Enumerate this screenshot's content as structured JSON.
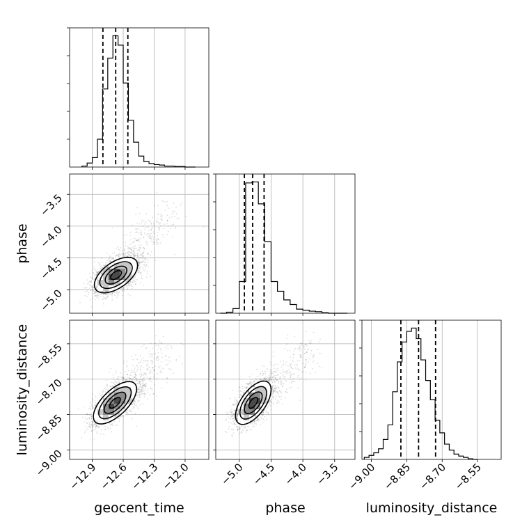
{
  "chart_data": {
    "type": "corner",
    "parameters": [
      "geocent_time",
      "phase",
      "luminosity_distance"
    ],
    "axes": {
      "geocent_time": {
        "range": [
          -13.12,
          -11.77
        ],
        "ticks": [
          -12.9,
          -12.6,
          -12.3,
          -12.0
        ],
        "tick_labels": [
          "−12.9",
          "−12.6",
          "−12.3",
          "−12.0"
        ]
      },
      "phase": {
        "range": [
          -5.37,
          -3.18
        ],
        "ticks": [
          -5.0,
          -4.5,
          -4.0,
          -3.5
        ],
        "tick_labels": [
          "−5.0",
          "−4.5",
          "−4.0",
          "−3.5"
        ]
      },
      "luminosity_distance": {
        "range": [
          -9.04,
          -8.45
        ],
        "ticks": [
          -9.0,
          -8.85,
          -8.7,
          -8.55
        ],
        "tick_labels": [
          "−9.00",
          "−8.85",
          "−8.70",
          "−8.55"
        ]
      }
    },
    "histograms": [
      {
        "parameter": "geocent_time",
        "bin_edges": [
          -13.0,
          -12.95,
          -12.9,
          -12.85,
          -12.8,
          -12.75,
          -12.7,
          -12.65,
          -12.6,
          -12.55,
          -12.5,
          -12.45,
          -12.4,
          -12.35,
          -12.3,
          -12.25,
          -12.2,
          -12.15,
          -12.1,
          -12.05,
          -12.0,
          -11.95,
          -11.9
        ],
        "counts": [
          2,
          8,
          19,
          56,
          157,
          219,
          264,
          245,
          169,
          94,
          50,
          22,
          11,
          7,
          5,
          4,
          2,
          2,
          1,
          1,
          0,
          0
        ],
        "quantiles": [
          -12.797,
          -12.673,
          -12.555
        ]
      },
      {
        "parameter": "phase",
        "bin_edges": [
          -5.3,
          -5.2,
          -5.1,
          -5.0,
          -4.9,
          -4.8,
          -4.7,
          -4.6,
          -4.5,
          -4.4,
          -4.3,
          -4.2,
          -4.1,
          -4.0,
          -3.9,
          -3.8,
          -3.7,
          -3.6,
          -3.5,
          -3.4,
          -3.3
        ],
        "counts": [
          0,
          2,
          9,
          62,
          255,
          257,
          214,
          140,
          62,
          43,
          26,
          17,
          8,
          6,
          4,
          3,
          1,
          0,
          0,
          0
        ],
        "quantiles": [
          -4.92,
          -4.79,
          -4.61
        ]
      },
      {
        "parameter": "luminosity_distance",
        "bin_edges": [
          -9.03,
          -9.01,
          -8.99,
          -8.97,
          -8.95,
          -8.93,
          -8.91,
          -8.89,
          -8.87,
          -8.85,
          -8.83,
          -8.81,
          -8.79,
          -8.77,
          -8.75,
          -8.73,
          -8.71,
          -8.69,
          -8.67,
          -8.65,
          -8.63,
          -8.61,
          -8.59,
          -8.57,
          -8.55
        ],
        "counts": [
          3,
          6,
          10,
          16,
          30,
          52,
          102,
          147,
          177,
          193,
          198,
          182,
          150,
          119,
          90,
          59,
          40,
          23,
          14,
          8,
          5,
          3,
          1,
          0
        ],
        "quantiles": [
          -8.875,
          -8.8,
          -8.728
        ]
      }
    ],
    "pairs": [
      {
        "x": "geocent_time",
        "y": "phase",
        "mean": [
          -12.67,
          -4.77
        ],
        "sd": [
          0.105,
          0.14
        ],
        "corr": 0.55,
        "tail": [
          -12.15,
          -3.75
        ]
      },
      {
        "x": "geocent_time",
        "y": "luminosity_distance",
        "mean": [
          -12.68,
          -8.8
        ],
        "sd": [
          0.105,
          0.045
        ],
        "corr": 0.65,
        "tail": [
          -12.2,
          -8.58
        ]
      },
      {
        "x": "phase",
        "y": "luminosity_distance",
        "mean": [
          -4.78,
          -8.8
        ],
        "sd": [
          0.14,
          0.046
        ],
        "corr": 0.6,
        "tail": [
          -3.85,
          -8.57
        ]
      }
    ],
    "contour_levels": [
      0.118,
      0.393,
      0.675,
      0.864
    ],
    "grid": true,
    "xlabel_rotation_deg": 45
  }
}
